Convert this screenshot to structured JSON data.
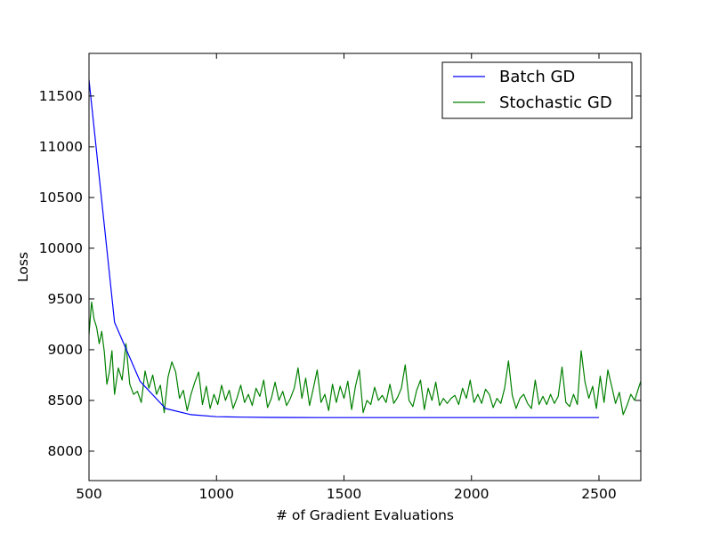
{
  "chart_data": {
    "type": "line",
    "title": "",
    "xlabel": "# of Gradient Evaluations",
    "ylabel": "Loss",
    "xlim": [
      500,
      2664
    ],
    "ylim": [
      7710,
      11920
    ],
    "x_ticks": [
      500,
      1000,
      1500,
      2000,
      2500
    ],
    "y_ticks": [
      8000,
      8500,
      9000,
      9500,
      10000,
      10500,
      11000,
      11500
    ],
    "grid": false,
    "legend": "top-right",
    "series": [
      {
        "name": "Batch GD",
        "color": "#0000ff",
        "x": [
          500,
          600,
          700,
          800,
          900,
          1000,
          1100,
          1200,
          1300,
          1400,
          1500,
          1600,
          1700,
          1800,
          1900,
          2000,
          2100,
          2200,
          2300,
          2400,
          2500
        ],
        "y": [
          11660,
          9270,
          8690,
          8420,
          8360,
          8340,
          8335,
          8333,
          8332,
          8331,
          8331,
          8331,
          8331,
          8331,
          8331,
          8331,
          8331,
          8331,
          8331,
          8331,
          8331
        ]
      },
      {
        "name": "Stochastic GD",
        "color": "#008000",
        "x": [
          500,
          510,
          520,
          530,
          540,
          550,
          560,
          570,
          580,
          590,
          600,
          615,
          630,
          645,
          660,
          675,
          690,
          705,
          720,
          735,
          750,
          765,
          780,
          795,
          810,
          825,
          840,
          855,
          870,
          885,
          900,
          915,
          930,
          945,
          960,
          975,
          990,
          1005,
          1020,
          1035,
          1050,
          1065,
          1080,
          1095,
          1110,
          1125,
          1140,
          1155,
          1170,
          1185,
          1200,
          1215,
          1230,
          1245,
          1260,
          1275,
          1290,
          1305,
          1320,
          1335,
          1350,
          1365,
          1380,
          1395,
          1410,
          1425,
          1440,
          1455,
          1470,
          1485,
          1500,
          1515,
          1530,
          1545,
          1560,
          1575,
          1590,
          1605,
          1620,
          1635,
          1650,
          1665,
          1680,
          1695,
          1710,
          1725,
          1740,
          1755,
          1770,
          1785,
          1800,
          1815,
          1830,
          1845,
          1860,
          1875,
          1890,
          1905,
          1920,
          1935,
          1950,
          1965,
          1980,
          1995,
          2010,
          2025,
          2040,
          2055,
          2070,
          2085,
          2100,
          2115,
          2130,
          2145,
          2160,
          2175,
          2190,
          2205,
          2220,
          2235,
          2250,
          2265,
          2280,
          2295,
          2310,
          2325,
          2340,
          2355,
          2370,
          2385,
          2400,
          2415,
          2430,
          2445,
          2460,
          2475,
          2490,
          2505,
          2520,
          2535,
          2550,
          2565,
          2580,
          2595,
          2610,
          2625,
          2640,
          2655,
          2664
        ],
        "y": [
          9150,
          9470,
          9300,
          9220,
          9060,
          9180,
          8980,
          8660,
          8780,
          8990,
          8560,
          8820,
          8700,
          9060,
          8660,
          8560,
          8590,
          8480,
          8790,
          8620,
          8750,
          8560,
          8650,
          8380,
          8730,
          8880,
          8780,
          8520,
          8600,
          8400,
          8560,
          8680,
          8780,
          8460,
          8640,
          8420,
          8560,
          8460,
          8650,
          8500,
          8600,
          8420,
          8520,
          8650,
          8480,
          8560,
          8450,
          8620,
          8540,
          8700,
          8430,
          8520,
          8680,
          8500,
          8590,
          8450,
          8520,
          8620,
          8820,
          8520,
          8720,
          8450,
          8620,
          8800,
          8480,
          8560,
          8400,
          8660,
          8480,
          8640,
          8520,
          8690,
          8410,
          8640,
          8800,
          8380,
          8500,
          8460,
          8630,
          8500,
          8550,
          8480,
          8660,
          8470,
          8530,
          8620,
          8850,
          8500,
          8440,
          8600,
          8700,
          8410,
          8620,
          8500,
          8680,
          8450,
          8520,
          8470,
          8520,
          8550,
          8460,
          8620,
          8520,
          8700,
          8480,
          8560,
          8470,
          8610,
          8560,
          8430,
          8520,
          8470,
          8620,
          8890,
          8550,
          8420,
          8520,
          8560,
          8470,
          8420,
          8700,
          8460,
          8540,
          8460,
          8560,
          8470,
          8540,
          8830,
          8480,
          8440,
          8560,
          8460,
          8990,
          8680,
          8520,
          8640,
          8420,
          8740,
          8480,
          8800,
          8640,
          8470,
          8580,
          8360,
          8450,
          8560,
          8500,
          8620,
          8690
        ]
      }
    ]
  }
}
